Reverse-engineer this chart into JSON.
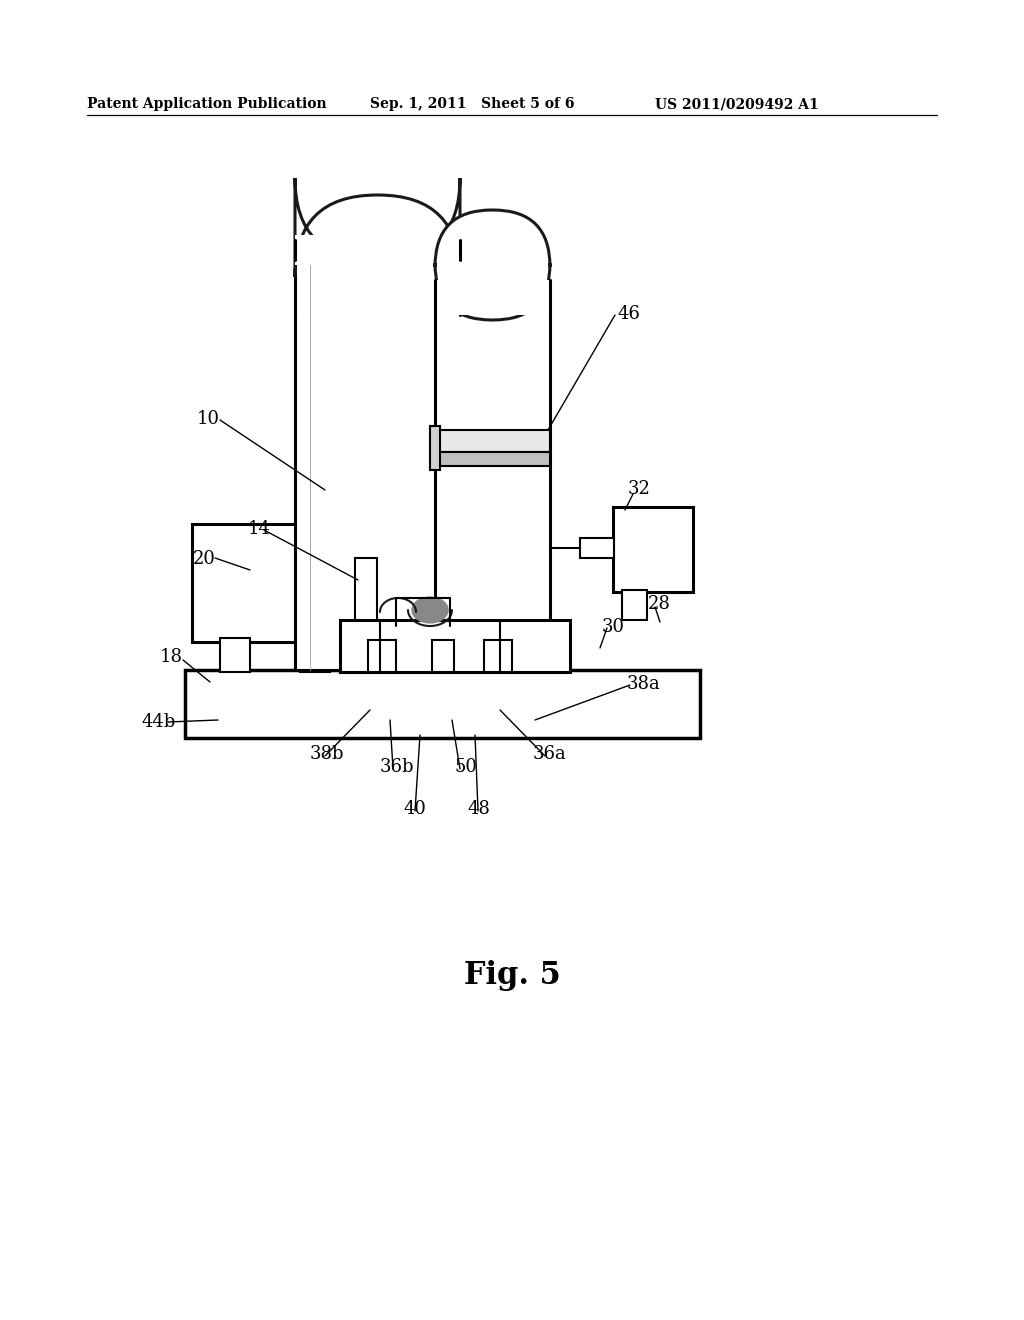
{
  "bg_color": "#ffffff",
  "header_left": "Patent Application Publication",
  "header_mid": "Sep. 1, 2011   Sheet 5 of 6",
  "header_right": "US 2011/0209492 A1",
  "fig_label": "Fig. 5",
  "lc": "#1a1a1a",
  "lw_main": 2.2,
  "lw_detail": 1.5,
  "lw_ann": 1.0,
  "label_fs": 13,
  "header_fs": 10,
  "fig_fs": 22
}
